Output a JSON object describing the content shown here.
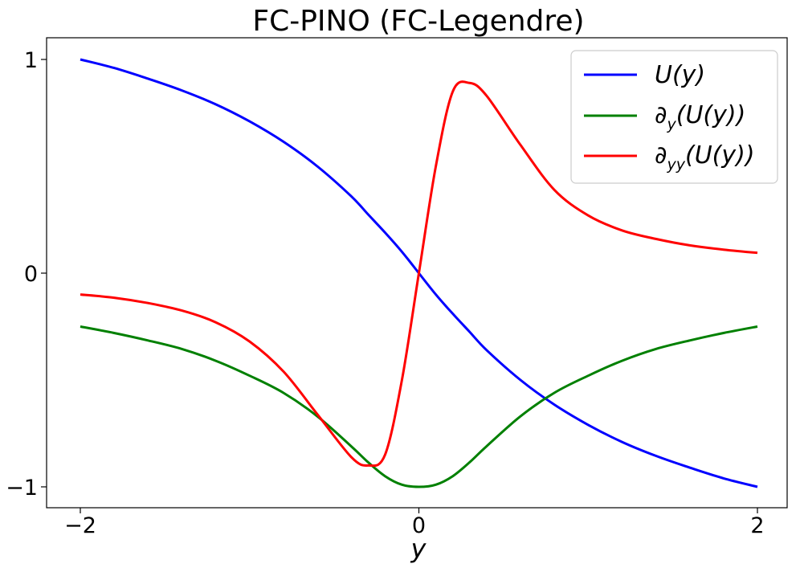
{
  "chart_data": {
    "type": "line",
    "title": "FC-PINO (FC-Legendre)",
    "xlabel": "y",
    "ylabel": "",
    "xlim": [
      -2.2,
      2.2
    ],
    "ylim": [
      -1.1,
      1.1
    ],
    "xticks": [
      -2,
      0,
      2
    ],
    "xtick_labels": [
      "−2",
      "0",
      "2"
    ],
    "yticks": [
      -1,
      0,
      1
    ],
    "ytick_labels": [
      "−1",
      "0",
      "1"
    ],
    "grid": false,
    "legend_position": "top-right",
    "x": [
      -2.0,
      -1.8,
      -1.6,
      -1.4,
      -1.2,
      -1.0,
      -0.8,
      -0.6,
      -0.4,
      -0.3,
      -0.2,
      -0.1,
      0.0,
      0.1,
      0.2,
      0.3,
      0.4,
      0.6,
      0.8,
      1.0,
      1.2,
      1.4,
      1.6,
      1.8,
      2.0
    ],
    "series": [
      {
        "name": "U(y)",
        "color": "#0000ff",
        "values": [
          1.0,
          0.96,
          0.91,
          0.855,
          0.79,
          0.71,
          0.615,
          0.5,
          0.36,
          0.275,
          0.19,
          0.1,
          0.0,
          -0.1,
          -0.19,
          -0.275,
          -0.36,
          -0.5,
          -0.615,
          -0.71,
          -0.79,
          -0.855,
          -0.91,
          -0.96,
          -1.0
        ]
      },
      {
        "name": "∂y(U(y))",
        "color": "#008000",
        "values": [
          -0.25,
          -0.28,
          -0.315,
          -0.355,
          -0.41,
          -0.48,
          -0.56,
          -0.67,
          -0.81,
          -0.885,
          -0.95,
          -0.99,
          -1.0,
          -0.99,
          -0.95,
          -0.885,
          -0.81,
          -0.67,
          -0.56,
          -0.48,
          -0.41,
          -0.355,
          -0.315,
          -0.28,
          -0.25
        ]
      },
      {
        "name": "∂yy(U(y))",
        "color": "#ff0000",
        "values": [
          -0.1,
          -0.115,
          -0.14,
          -0.175,
          -0.23,
          -0.32,
          -0.46,
          -0.66,
          -0.86,
          -0.9,
          -0.85,
          -0.5,
          0.0,
          0.5,
          0.85,
          0.89,
          0.83,
          0.6,
          0.39,
          0.27,
          0.2,
          0.16,
          0.13,
          0.11,
          0.095
        ]
      }
    ]
  },
  "legend": {
    "u_main": "U(y)",
    "dy_main": "∂",
    "dy_sub": "y",
    "dy_rest": "(U(y))",
    "dyy_main": "∂",
    "dyy_sub": "yy",
    "dyy_rest": "(U(y))"
  }
}
